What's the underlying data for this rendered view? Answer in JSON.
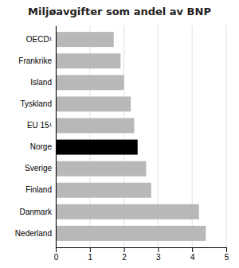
{
  "chart_data": {
    "type": "bar",
    "orientation": "horizontal",
    "title": "Miljøavgifter som andel av BNP",
    "categories": [
      "OECD¹",
      "Frankrike",
      "Island",
      "Tyskland",
      "EU 15¹",
      "Norge",
      "Sverige",
      "Finland",
      "Danmark",
      "Nederland"
    ],
    "values": [
      1.7,
      1.9,
      2.0,
      2.2,
      2.3,
      2.4,
      2.65,
      2.8,
      4.2,
      4.4
    ],
    "colors": [
      "#b8b8b8",
      "#b8b8b8",
      "#b8b8b8",
      "#b8b8b8",
      "#b8b8b8",
      "#000000",
      "#b8b8b8",
      "#b8b8b8",
      "#b8b8b8",
      "#b8b8b8"
    ],
    "xlim": [
      0,
      5
    ],
    "xticks": [
      0,
      1,
      2,
      3,
      4,
      5
    ],
    "grid": true
  }
}
